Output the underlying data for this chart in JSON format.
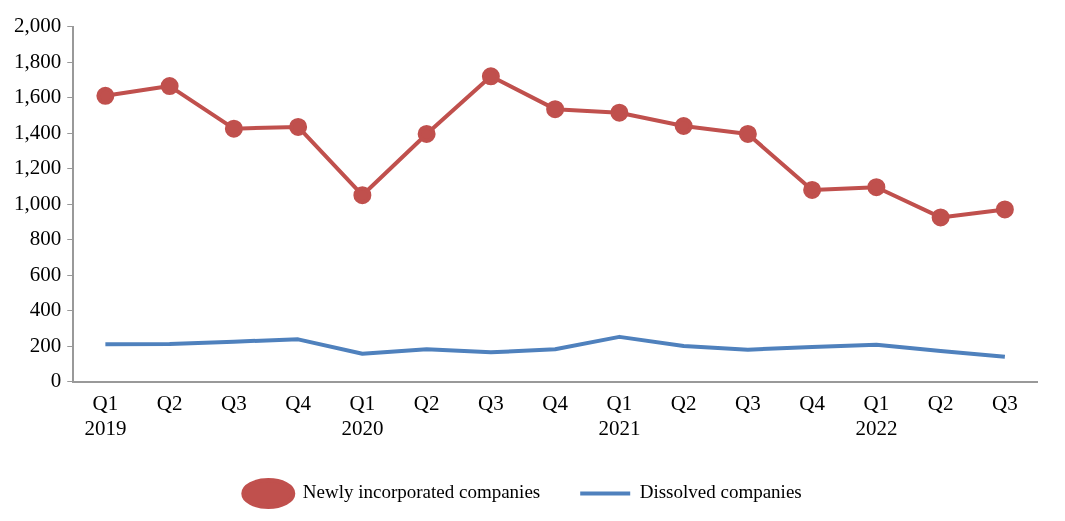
{
  "chart_data": {
    "type": "line",
    "categories": [
      "Q1\n2019",
      "Q2",
      "Q3",
      "Q4",
      "Q1\n2020",
      "Q2",
      "Q3",
      "Q4",
      "Q1\n2021",
      "Q2",
      "Q3",
      "Q4",
      "Q1\n2022",
      "Q2",
      "Q3"
    ],
    "series": [
      {
        "name": "Newly incorporated companies",
        "color": "#c0504d",
        "marker": "circle",
        "values": [
          1610,
          1665,
          1425,
          1435,
          1050,
          1395,
          1720,
          1535,
          1515,
          1440,
          1395,
          1080,
          1095,
          925,
          970
        ]
      },
      {
        "name": "Dissolved companies",
        "color": "#4f81bd",
        "marker": "none",
        "values": [
          210,
          212,
          225,
          238,
          157,
          182,
          165,
          182,
          252,
          200,
          180,
          195,
          208,
          172,
          140
        ]
      }
    ],
    "ylim": [
      0,
      2000
    ],
    "yticks": [
      {
        "value": 0,
        "label": "0"
      },
      {
        "value": 200,
        "label": "200"
      },
      {
        "value": 400,
        "label": "400"
      },
      {
        "value": 600,
        "label": "600"
      },
      {
        "value": 800,
        "label": "800"
      },
      {
        "value": 1000,
        "label": "1,000"
      },
      {
        "value": 1200,
        "label": "1,200"
      },
      {
        "value": 1400,
        "label": "1,400"
      },
      {
        "value": 1600,
        "label": "1,600"
      },
      {
        "value": 1800,
        "label": "1,800"
      },
      {
        "value": 2000,
        "label": "2,000"
      }
    ],
    "grid": false,
    "legend": "bottom"
  }
}
